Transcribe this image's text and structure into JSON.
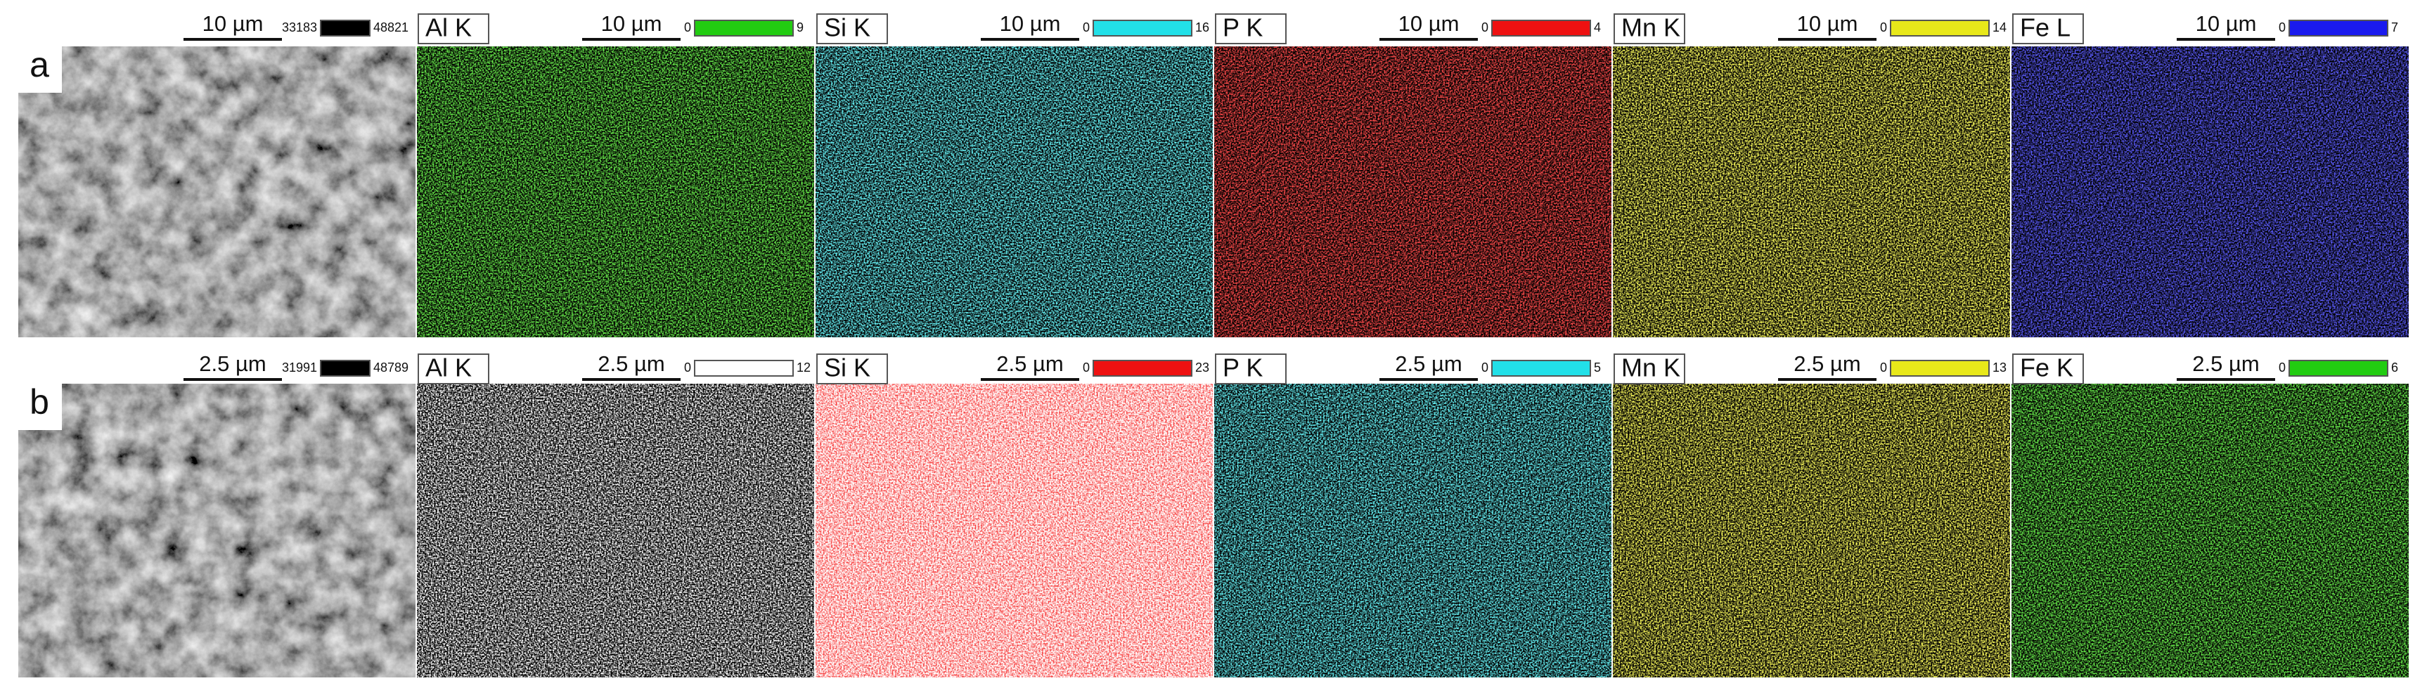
{
  "rows": [
    {
      "label": "a",
      "panels": [
        {
          "scale": "10 µm",
          "cbar_min": 33183,
          "cbar_max": 48821,
          "color": "#000000"
        },
        {
          "element": "Al K",
          "scale": "10 µm",
          "cbar_min": 0,
          "cbar_max": 9,
          "color": "#22cc11",
          "background": "#000000"
        },
        {
          "element": "Si K",
          "scale": "10 µm",
          "cbar_min": 0,
          "cbar_max": 16,
          "color": "#22e0e8",
          "background": "#000000"
        },
        {
          "element": "P K",
          "scale": "10 µm",
          "cbar_min": 0,
          "cbar_max": 4,
          "color": "#ee1111",
          "background": "#000000"
        },
        {
          "element": "Mn K",
          "scale": "10 µm",
          "cbar_min": 0,
          "cbar_max": 14,
          "color": "#e8e81a",
          "background": "#000000"
        },
        {
          "element": "Fe L",
          "scale": "10 µm",
          "cbar_min": 0,
          "cbar_max": 7,
          "color": "#1a1aee",
          "background": "#000000"
        }
      ]
    },
    {
      "label": "b",
      "panels": [
        {
          "scale": "2.5 µm",
          "cbar_min": 31991,
          "cbar_max": 48789,
          "color": "#000000"
        },
        {
          "element": "Al K",
          "scale": "2.5 µm",
          "cbar_min": 0,
          "cbar_max": 12,
          "color": "#ffffff",
          "background": "#000000"
        },
        {
          "element": "Si K",
          "scale": "2.5 µm",
          "cbar_min": 0,
          "cbar_max": 23,
          "color": "#ee1111",
          "background": "#ffffff"
        },
        {
          "element": "P K",
          "scale": "2.5 µm",
          "cbar_min": 0,
          "cbar_max": 5,
          "color": "#22e0e8",
          "background": "#000000"
        },
        {
          "element": "Mn K",
          "scale": "2.5 µm",
          "cbar_min": 0,
          "cbar_max": 13,
          "color": "#e8e81a",
          "background": "#000000"
        },
        {
          "element": "Fe K",
          "scale": "2.5 µm",
          "cbar_min": 0,
          "cbar_max": 6,
          "color": "#22cc11",
          "background": "#000000"
        }
      ]
    }
  ]
}
